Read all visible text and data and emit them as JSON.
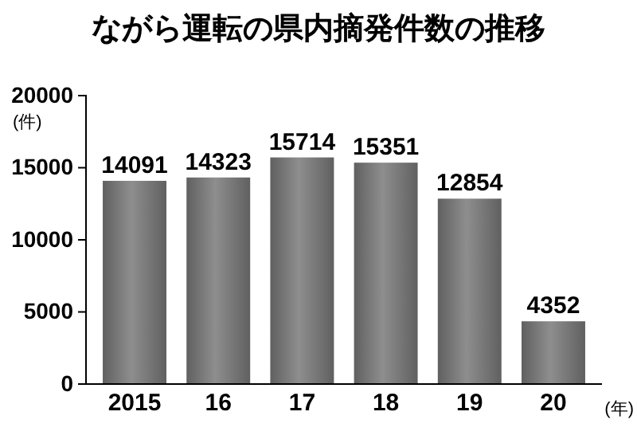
{
  "chart_data": {
    "type": "bar",
    "title": "ながら運転の県内摘発件数の推移",
    "ylabel": "(件)",
    "xlabel": "(年)",
    "categories": [
      "2015",
      "16",
      "17",
      "18",
      "19",
      "20"
    ],
    "values": [
      14091,
      14323,
      15714,
      15351,
      12854,
      4352
    ],
    "color": "#777777",
    "ylim": [
      0,
      20000
    ],
    "yticks": [
      0,
      5000,
      10000,
      15000,
      20000
    ],
    "data_labels": true,
    "grid": false
  }
}
